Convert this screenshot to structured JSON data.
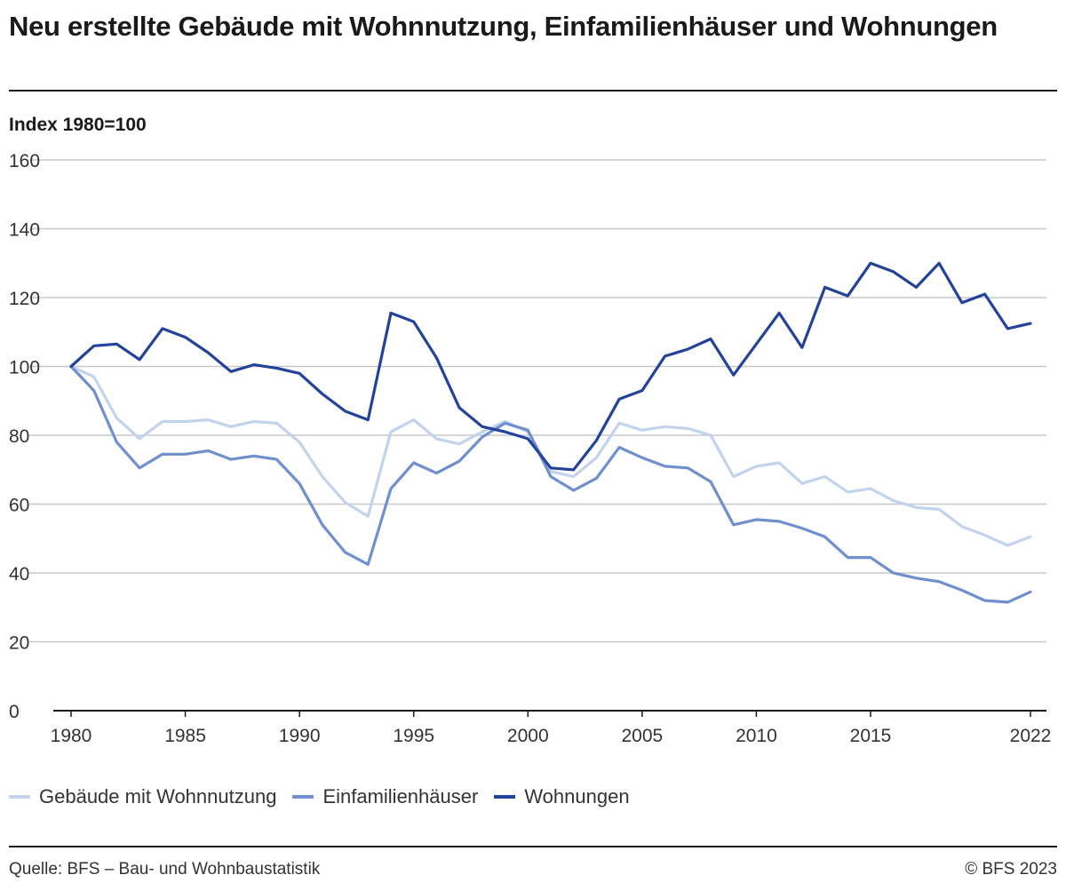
{
  "title": "Neu erstellte Gebäude mit Wohnnutzung, Einfamilienhäuser und Wohnungen",
  "source": "Quelle: BFS – Bau- und Wohnbaustatistik",
  "copyright": "© BFS 2023",
  "colors": {
    "gebaeude": "#c2d3ee",
    "efh": "#6f8fcf",
    "wohnungen": "#23439a",
    "grid": "#c8c8c8",
    "axis": "#1a1a1a"
  },
  "chart_data": {
    "type": "line",
    "title": "Neu erstellte Gebäude mit Wohnnutzung, Einfamilienhäuser und Wohnungen",
    "ylabel": "Index 1980=100",
    "xlabel": "",
    "ylim": [
      0,
      160
    ],
    "xlim": [
      1980,
      2022
    ],
    "yticks": [
      0,
      20,
      40,
      60,
      80,
      100,
      120,
      140,
      160
    ],
    "xticks": [
      1980,
      1985,
      1990,
      1995,
      2000,
      2005,
      2010,
      2015,
      2022
    ],
    "grid": true,
    "legend_position": "bottom",
    "x": [
      1980,
      1981,
      1982,
      1983,
      1984,
      1985,
      1986,
      1987,
      1988,
      1989,
      1990,
      1991,
      1992,
      1993,
      1994,
      1995,
      1996,
      1997,
      1998,
      1999,
      2000,
      2001,
      2002,
      2003,
      2004,
      2005,
      2006,
      2007,
      2008,
      2009,
      2010,
      2011,
      2012,
      2013,
      2014,
      2015,
      2016,
      2017,
      2018,
      2019,
      2020,
      2021,
      2022
    ],
    "series": [
      {
        "name": "Gebäude mit Wohnnutzung",
        "color": "#c2d3ee",
        "values": [
          100,
          97,
          85,
          79,
          84,
          84,
          84.5,
          82.5,
          84,
          83.5,
          78,
          68,
          60.5,
          56.5,
          81,
          84.5,
          79,
          77.5,
          81,
          84,
          81,
          69.5,
          68,
          73.5,
          83.5,
          81.5,
          82.5,
          82,
          80,
          68,
          71,
          72,
          66,
          68,
          63.5,
          64.5,
          61,
          59,
          58.5,
          53.5,
          51,
          48,
          50.5
        ]
      },
      {
        "name": "Einfamilienhäuser",
        "color": "#6f8fcf",
        "values": [
          100,
          93,
          78,
          70.5,
          74.5,
          74.5,
          75.5,
          73,
          74,
          73,
          66,
          54,
          46,
          42.5,
          64.5,
          72,
          69,
          72.5,
          79.5,
          83.5,
          81.5,
          68,
          64,
          67.5,
          76.5,
          73.5,
          71,
          70.5,
          66.5,
          54,
          55.5,
          55,
          53,
          50.5,
          44.5,
          44.5,
          40,
          38.5,
          37.5,
          35,
          32,
          31.5,
          34.5
        ]
      },
      {
        "name": "Wohnungen",
        "color": "#23439a",
        "values": [
          100,
          106,
          106.5,
          102,
          111,
          108.5,
          104,
          98.5,
          100.5,
          99.5,
          98,
          92,
          87,
          84.5,
          115.5,
          113,
          102.5,
          88,
          82.5,
          81,
          79,
          70.5,
          70,
          78.5,
          90.5,
          93,
          103,
          105,
          108,
          97.5,
          106.5,
          115.5,
          105.5,
          123,
          120.5,
          130,
          127.5,
          123,
          130,
          118.5,
          121,
          111,
          112.5
        ]
      }
    ]
  }
}
